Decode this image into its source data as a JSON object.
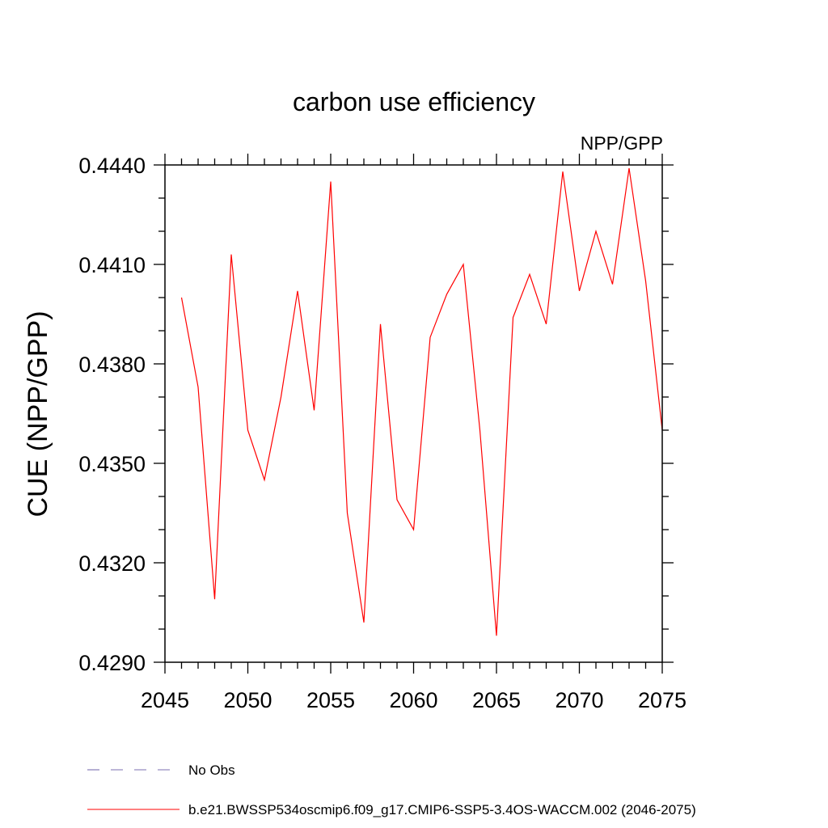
{
  "chart_data": {
    "type": "line",
    "title": "carbon use efficiency",
    "subtitle": "NPP/GPP",
    "xlabel": "",
    "ylabel": "CUE  (NPP/GPP)",
    "xlim": [
      2045,
      2075
    ],
    "ylim": [
      0.429,
      0.444
    ],
    "xticks": [
      2045,
      2050,
      2055,
      2060,
      2065,
      2070,
      2075
    ],
    "xtick_labels": [
      "2045",
      "2050",
      "2055",
      "2060",
      "2065",
      "2070",
      "2075"
    ],
    "yticks": [
      0.429,
      0.432,
      0.435,
      0.438,
      0.441,
      0.444
    ],
    "ytick_labels": [
      "0.4290",
      "0.4320",
      "0.4350",
      "0.4380",
      "0.4410",
      "0.4440"
    ],
    "grid": false,
    "legend_position": "bottom",
    "series": [
      {
        "name": "No Obs",
        "color": "#7b6fb0",
        "dash": "dashed",
        "x": [],
        "y": []
      },
      {
        "name": "b.e21.BWSSP534oscmip6.f09_g17.CMIP6-SSP5-3.4OS-WACCM.002 (2046-2075)",
        "color": "#ff0000",
        "dash": "solid",
        "x": [
          2046,
          2047,
          2048,
          2049,
          2050,
          2051,
          2052,
          2053,
          2054,
          2055,
          2056,
          2057,
          2058,
          2059,
          2060,
          2061,
          2062,
          2063,
          2064,
          2065,
          2066,
          2067,
          2068,
          2069,
          2070,
          2071,
          2072,
          2073,
          2074,
          2075
        ],
        "y": [
          0.44,
          0.4373,
          0.4309,
          0.4413,
          0.436,
          0.4345,
          0.437,
          0.4402,
          0.4366,
          0.4435,
          0.4335,
          0.4302,
          0.4392,
          0.4339,
          0.433,
          0.4388,
          0.4401,
          0.441,
          0.436,
          0.4298,
          0.4394,
          0.4407,
          0.4392,
          0.4438,
          0.4402,
          0.442,
          0.4404,
          0.4439,
          0.4405,
          0.436
        ]
      }
    ]
  }
}
